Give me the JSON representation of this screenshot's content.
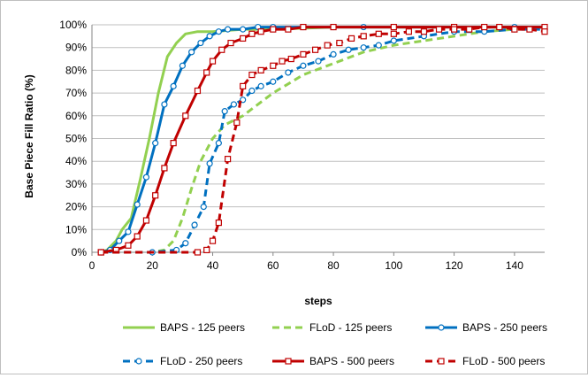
{
  "chart_data": {
    "type": "line",
    "title": "",
    "xlabel": "steps",
    "ylabel": "Base Piece Fill Ratio (%)",
    "xlim": [
      0,
      150
    ],
    "ylim": [
      0,
      100
    ],
    "x_ticks": [
      0,
      20,
      40,
      60,
      80,
      100,
      120,
      140
    ],
    "y_ticks": [
      0,
      10,
      20,
      30,
      40,
      50,
      60,
      70,
      80,
      90,
      100
    ],
    "x_tick_labels": [
      "0",
      "20",
      "40",
      "60",
      "80",
      "100",
      "120",
      "140"
    ],
    "y_tick_labels": [
      "0%",
      "10%",
      "20%",
      "30%",
      "40%",
      "50%",
      "60%",
      "70%",
      "80%",
      "90%",
      "100%"
    ],
    "grid": "horizontal",
    "legend_position": "bottom",
    "series": [
      {
        "name": "BAPS - 125 peers",
        "color": "#92d050",
        "dash": "solid",
        "marker": "none",
        "points": [
          [
            3,
            0
          ],
          [
            5,
            1
          ],
          [
            8,
            5
          ],
          [
            10,
            10
          ],
          [
            13,
            15
          ],
          [
            16,
            32
          ],
          [
            19,
            50
          ],
          [
            22,
            70
          ],
          [
            25,
            86
          ],
          [
            28,
            92
          ],
          [
            31,
            96
          ],
          [
            35,
            97
          ],
          [
            40,
            97
          ],
          [
            50,
            98
          ],
          [
            60,
            98
          ],
          [
            80,
            99
          ],
          [
            100,
            99
          ],
          [
            150,
            99
          ]
        ]
      },
      {
        "name": "FLoD - 125 peers",
        "color": "#92d050",
        "dash": "dashed",
        "marker": "none",
        "points": [
          [
            3,
            0
          ],
          [
            20,
            0
          ],
          [
            24,
            1
          ],
          [
            27,
            5
          ],
          [
            30,
            15
          ],
          [
            33,
            28
          ],
          [
            36,
            40
          ],
          [
            40,
            50
          ],
          [
            44,
            56
          ],
          [
            50,
            60
          ],
          [
            55,
            65
          ],
          [
            60,
            70
          ],
          [
            65,
            74
          ],
          [
            70,
            78
          ],
          [
            80,
            83
          ],
          [
            90,
            88
          ],
          [
            100,
            91
          ],
          [
            110,
            93
          ],
          [
            120,
            95
          ],
          [
            130,
            97
          ],
          [
            140,
            98
          ],
          [
            150,
            99
          ]
        ]
      },
      {
        "name": "BAPS - 250 peers",
        "color": "#0070c0",
        "dash": "solid",
        "marker": "circle",
        "points": [
          [
            3,
            0
          ],
          [
            6,
            1
          ],
          [
            9,
            5
          ],
          [
            12,
            9
          ],
          [
            15,
            21
          ],
          [
            18,
            33
          ],
          [
            21,
            48
          ],
          [
            24,
            65
          ],
          [
            27,
            73
          ],
          [
            30,
            82
          ],
          [
            33,
            88
          ],
          [
            36,
            92
          ],
          [
            39,
            95
          ],
          [
            42,
            97
          ],
          [
            45,
            98
          ],
          [
            50,
            98
          ],
          [
            55,
            99
          ],
          [
            60,
            99
          ],
          [
            70,
            99
          ],
          [
            80,
            99
          ],
          [
            90,
            99
          ],
          [
            100,
            99
          ],
          [
            120,
            99
          ],
          [
            140,
            99
          ],
          [
            150,
            99
          ]
        ]
      },
      {
        "name": "FLoD - 250 peers",
        "color": "#0070c0",
        "dash": "dashed",
        "marker": "circle",
        "points": [
          [
            3,
            0
          ],
          [
            20,
            0
          ],
          [
            28,
            1
          ],
          [
            31,
            4
          ],
          [
            34,
            12
          ],
          [
            37,
            20
          ],
          [
            39,
            39
          ],
          [
            42,
            48
          ],
          [
            44,
            62
          ],
          [
            47,
            65
          ],
          [
            50,
            67
          ],
          [
            53,
            71
          ],
          [
            56,
            73
          ],
          [
            60,
            75
          ],
          [
            65,
            79
          ],
          [
            70,
            82
          ],
          [
            75,
            84
          ],
          [
            80,
            87
          ],
          [
            85,
            89
          ],
          [
            90,
            90
          ],
          [
            95,
            91
          ],
          [
            100,
            93
          ],
          [
            110,
            95
          ],
          [
            120,
            97
          ],
          [
            130,
            97
          ],
          [
            140,
            98
          ],
          [
            150,
            98
          ]
        ]
      },
      {
        "name": "BAPS - 500 peers",
        "color": "#c00000",
        "dash": "solid",
        "marker": "square",
        "points": [
          [
            3,
            0
          ],
          [
            8,
            1
          ],
          [
            12,
            3
          ],
          [
            15,
            7
          ],
          [
            18,
            14
          ],
          [
            21,
            25
          ],
          [
            24,
            37
          ],
          [
            27,
            48
          ],
          [
            31,
            60
          ],
          [
            35,
            71
          ],
          [
            38,
            79
          ],
          [
            40,
            84
          ],
          [
            43,
            89
          ],
          [
            46,
            92
          ],
          [
            50,
            94
          ],
          [
            53,
            96
          ],
          [
            56,
            97
          ],
          [
            60,
            98
          ],
          [
            65,
            98
          ],
          [
            70,
            99
          ],
          [
            80,
            99
          ],
          [
            100,
            99
          ],
          [
            120,
            99
          ],
          [
            150,
            99
          ]
        ]
      },
      {
        "name": "FLoD - 500 peers",
        "color": "#c00000",
        "dash": "dashed",
        "marker": "square",
        "points": [
          [
            3,
            0
          ],
          [
            35,
            0
          ],
          [
            38,
            1
          ],
          [
            40,
            5
          ],
          [
            42,
            13
          ],
          [
            45,
            41
          ],
          [
            48,
            57
          ],
          [
            50,
            73
          ],
          [
            53,
            78
          ],
          [
            56,
            80
          ],
          [
            60,
            82
          ],
          [
            63,
            84
          ],
          [
            66,
            85
          ],
          [
            70,
            87
          ],
          [
            74,
            89
          ],
          [
            78,
            91
          ],
          [
            82,
            92
          ],
          [
            86,
            94
          ],
          [
            90,
            95
          ],
          [
            95,
            96
          ],
          [
            100,
            96
          ],
          [
            105,
            97
          ],
          [
            110,
            97
          ],
          [
            115,
            98
          ],
          [
            120,
            98
          ],
          [
            125,
            98
          ],
          [
            130,
            99
          ],
          [
            135,
            99
          ],
          [
            140,
            98
          ],
          [
            145,
            98
          ],
          [
            150,
            97
          ]
        ]
      }
    ]
  }
}
